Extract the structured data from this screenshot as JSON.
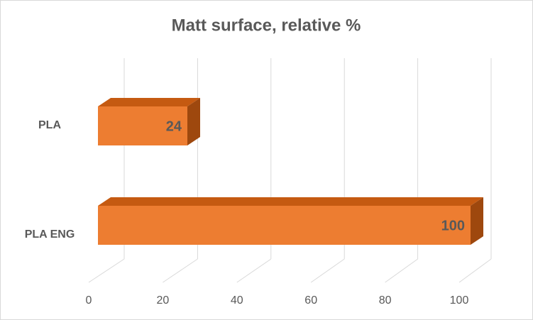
{
  "chart_data": {
    "type": "bar",
    "title": "Matt surface, relative %",
    "categories": [
      "PLA",
      "PLA ENG"
    ],
    "values": [
      24,
      100
    ],
    "color": "#ed7d31",
    "xlim": [
      0,
      100
    ],
    "xticks": [
      0,
      20,
      40,
      60,
      80,
      100
    ],
    "grid": true
  }
}
